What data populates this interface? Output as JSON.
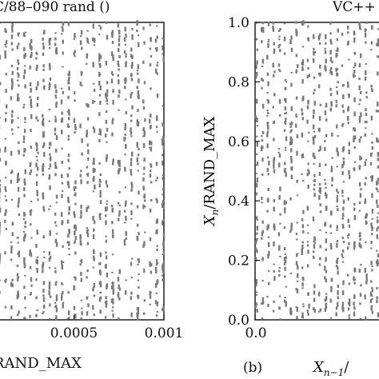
{
  "figure": {
    "panel_label_b": "(b)"
  },
  "chart_data": [
    {
      "type": "scatter",
      "title": "C/88–090 rand ()",
      "xlabel": "RAND_MAX",
      "ylabel": "",
      "xlim": [
        0.0,
        0.001
      ],
      "ylim": [
        0.0,
        1.0
      ],
      "x_ticks": [
        "0.0005",
        "0.001"
      ],
      "y_ticks": [],
      "grid": false,
      "marker_color": "#7a7a7a",
      "stripes_x": [
        1.5e-05,
        5e-05,
        8.5e-05,
        0.00012,
        0.000155,
        0.00019,
        0.000225,
        0.00026,
        0.000295,
        0.00033,
        0.000365,
        0.0004,
        0.000435,
        0.00047,
        0.000505,
        0.00054,
        0.000575,
        0.00061,
        0.000645,
        0.00068,
        0.000715,
        0.00075,
        0.000785,
        0.00082,
        0.000855,
        0.00089,
        0.000925,
        0.00096,
        0.000995
      ],
      "note_points": "Points form dense vertical stripes at the listed x values spanning y from 0 to 1."
    },
    {
      "type": "scatter",
      "title": "VC++",
      "xlabel": "/",
      "ylabel": "/RAND_MAX",
      "x_label_symbol": "X",
      "x_label_sub": "n−1",
      "y_label_symbol": "X",
      "y_label_sub": "n",
      "xlim": [
        0.0,
        1.0
      ],
      "ylim": [
        0.0,
        1.0
      ],
      "x_ticks": [
        "0.0"
      ],
      "y_ticks": [
        "0.0",
        "0.2",
        "0.4",
        "0.6",
        "0.8",
        "1.0"
      ],
      "y_tick_values": [
        0.0,
        0.2,
        0.4,
        0.6,
        0.8,
        1.0
      ],
      "grid": false,
      "marker_color": "#7a7a7a",
      "stripes_x": [
        0.01,
        0.05,
        0.09,
        0.13,
        0.17,
        0.21,
        0.25,
        0.29,
        0.33,
        0.37,
        0.41,
        0.45,
        0.49,
        0.53,
        0.57,
        0.61,
        0.65,
        0.69,
        0.73,
        0.77,
        0.81,
        0.85,
        0.89,
        0.93,
        0.97
      ],
      "note_points": "Points form dense vertical stripes at the listed x values spanning y from 0 to 1."
    }
  ]
}
